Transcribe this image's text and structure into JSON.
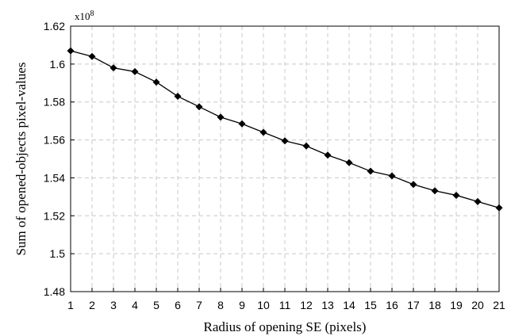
{
  "chart_data": {
    "type": "line",
    "title": "",
    "xlabel": "Radius of opening SE (pixels)",
    "ylabel": "Sum of opened-objects pixel-values",
    "y_multiplier_base": "x10",
    "y_multiplier_exponent": "8",
    "xlim": [
      1,
      21
    ],
    "ylim": [
      1.48,
      1.62
    ],
    "x_ticks": [
      "1",
      "2",
      "3",
      "4",
      "5",
      "6",
      "7",
      "8",
      "9",
      "10",
      "11",
      "12",
      "13",
      "14",
      "15",
      "16",
      "17",
      "18",
      "19",
      "20",
      "21"
    ],
    "y_ticks": [
      "1.48",
      "1.5",
      "1.52",
      "1.54",
      "1.56",
      "1.58",
      "1.6",
      "1.62"
    ],
    "grid": true,
    "marker": "diamond",
    "line_color": "#000000",
    "grid_color": "#c8c8c8",
    "x": [
      1,
      2,
      3,
      4,
      5,
      6,
      7,
      8,
      9,
      10,
      11,
      12,
      13,
      14,
      15,
      16,
      17,
      18,
      19,
      20,
      21
    ],
    "values": [
      1.607,
      1.604,
      1.598,
      1.596,
      1.5905,
      1.583,
      1.5775,
      1.572,
      1.5685,
      1.564,
      1.5595,
      1.5568,
      1.552,
      1.548,
      1.5435,
      1.541,
      1.5365,
      1.5332,
      1.5308,
      1.5275,
      1.5242
    ]
  }
}
